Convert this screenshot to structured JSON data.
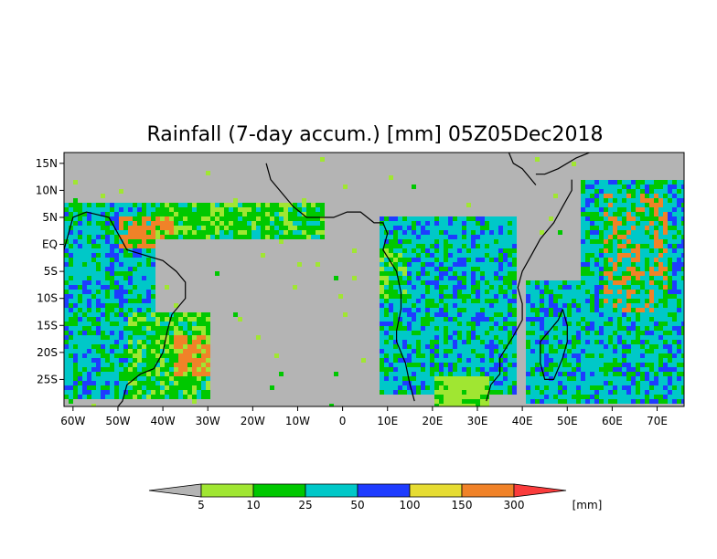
{
  "title": "Rainfall (7-day accum.) [mm] 05Z05Dec2018",
  "map": {
    "region": "Tropical Atlantic, Africa and western Indian Ocean",
    "lon_range": [
      -62,
      76
    ],
    "lat_range": [
      -30,
      17
    ],
    "land_outline": "coastlines and country borders in black",
    "no_data_color": "#b4b4b4"
  },
  "axes": {
    "x_ticks": [
      {
        "value": -60,
        "label": "60W"
      },
      {
        "value": -50,
        "label": "50W"
      },
      {
        "value": -40,
        "label": "40W"
      },
      {
        "value": -30,
        "label": "30W"
      },
      {
        "value": -20,
        "label": "20W"
      },
      {
        "value": -10,
        "label": "10W"
      },
      {
        "value": 0,
        "label": "0"
      },
      {
        "value": 10,
        "label": "10E"
      },
      {
        "value": 20,
        "label": "20E"
      },
      {
        "value": 30,
        "label": "30E"
      },
      {
        "value": 40,
        "label": "40E"
      },
      {
        "value": 50,
        "label": "50E"
      },
      {
        "value": 60,
        "label": "60E"
      },
      {
        "value": 70,
        "label": "70E"
      }
    ],
    "y_ticks": [
      {
        "value": 15,
        "label": "15N"
      },
      {
        "value": 10,
        "label": "10N"
      },
      {
        "value": 5,
        "label": "5N"
      },
      {
        "value": 0,
        "label": "EQ"
      },
      {
        "value": -5,
        "label": "5S"
      },
      {
        "value": -10,
        "label": "10S"
      },
      {
        "value": -15,
        "label": "15S"
      },
      {
        "value": -20,
        "label": "20S"
      },
      {
        "value": -25,
        "label": "25S"
      }
    ]
  },
  "colorbar": {
    "unit": "[mm]",
    "labels": [
      "5",
      "10",
      "25",
      "50",
      "100",
      "150",
      "300"
    ],
    "colors": [
      "#b4b4b4",
      "#a0e632",
      "#00c800",
      "#00c8c8",
      "#1e3cff",
      "#e6dc32",
      "#f08228",
      "#fa3c3c"
    ]
  },
  "features": {
    "rain_regions": [
      {
        "name": "ITCZ Atlantic",
        "lon": [
          -55,
          -10
        ],
        "lat": [
          2,
          8
        ],
        "level": "25-100"
      },
      {
        "name": "Amazon / N South America",
        "lon": [
          -62,
          -40
        ],
        "lat": [
          -30,
          8
        ],
        "level": "25-300"
      },
      {
        "name": "Congo basin / southern Africa",
        "lon": [
          8,
          38
        ],
        "lat": [
          -28,
          8
        ],
        "level": "25-100"
      },
      {
        "name": "Western Indian Ocean",
        "lon": [
          40,
          76
        ],
        "lat": [
          -28,
          12
        ],
        "level": "25-300"
      }
    ],
    "coastline_segments": {
      "south_america": [
        [
          -62,
          -1
        ],
        [
          -60,
          5
        ],
        [
          -57,
          6
        ],
        [
          -52,
          5
        ],
        [
          -50,
          2
        ],
        [
          -48,
          -1
        ],
        [
          -44,
          -2
        ],
        [
          -40,
          -3
        ],
        [
          -37,
          -5
        ],
        [
          -35,
          -7
        ],
        [
          -35,
          -10
        ],
        [
          -38,
          -13
        ],
        [
          -39,
          -16
        ],
        [
          -40,
          -20
        ],
        [
          -42,
          -23
        ],
        [
          -45,
          -24
        ],
        [
          -48,
          -26
        ],
        [
          -49,
          -29
        ],
        [
          -50,
          -30
        ]
      ],
      "west_africa": [
        [
          -17,
          15
        ],
        [
          -16,
          12
        ],
        [
          -15,
          11
        ],
        [
          -13,
          9
        ],
        [
          -11,
          7
        ],
        [
          -8,
          5
        ],
        [
          -5,
          5
        ],
        [
          -2,
          5
        ],
        [
          1,
          6
        ],
        [
          4,
          6
        ],
        [
          7,
          4
        ],
        [
          9,
          4
        ],
        [
          10,
          2
        ],
        [
          9,
          -1
        ],
        [
          12,
          -5
        ],
        [
          13,
          -9
        ],
        [
          13,
          -12
        ],
        [
          12,
          -16
        ],
        [
          12,
          -18
        ],
        [
          14,
          -22
        ],
        [
          15,
          -26
        ],
        [
          16,
          -29
        ]
      ],
      "east_africa": [
        [
          51,
          12
        ],
        [
          51,
          10
        ],
        [
          49,
          7
        ],
        [
          47,
          4
        ],
        [
          44,
          1
        ],
        [
          42,
          -2
        ],
        [
          40,
          -5
        ],
        [
          39,
          -8
        ],
        [
          40,
          -11
        ],
        [
          40,
          -14
        ],
        [
          38,
          -17
        ],
        [
          35,
          -21
        ],
        [
          35,
          -24
        ],
        [
          33,
          -26
        ],
        [
          32,
          -29
        ]
      ],
      "madagascar": [
        [
          49,
          -12
        ],
        [
          50,
          -15
        ],
        [
          50,
          -18
        ],
        [
          49,
          -21
        ],
        [
          47,
          -25
        ],
        [
          45,
          -25
        ],
        [
          44,
          -22
        ],
        [
          44,
          -18
        ],
        [
          46,
          -16
        ],
        [
          48,
          -14
        ],
        [
          49,
          -12
        ]
      ],
      "arabia": [
        [
          43,
          13
        ],
        [
          45,
          13
        ],
        [
          48,
          14
        ],
        [
          52,
          16
        ],
        [
          55,
          17
        ]
      ],
      "red_sea": [
        [
          37,
          17
        ],
        [
          38,
          15
        ],
        [
          40,
          14
        ],
        [
          42,
          12
        ],
        [
          43,
          11
        ]
      ]
    }
  }
}
